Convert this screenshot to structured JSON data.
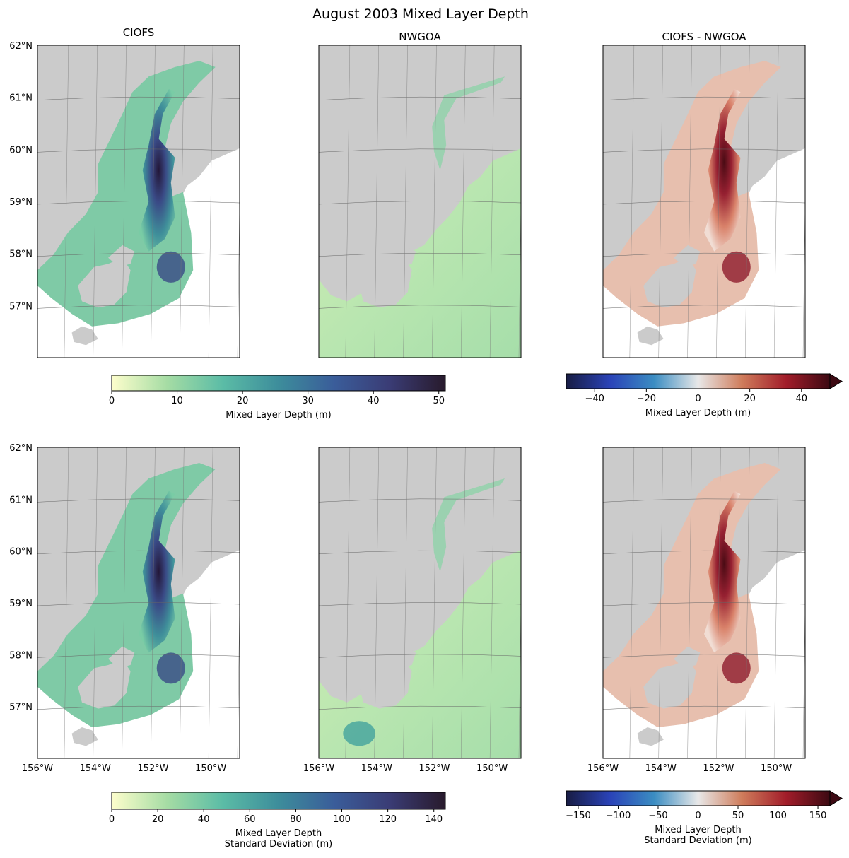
{
  "chart_data": {
    "type": "heatmap",
    "title": "August 2003 Mixed Layer Depth",
    "panels": [
      {
        "id": "p1",
        "row": 0,
        "col": 0,
        "title": "CIOFS",
        "colormap": "deep",
        "ylabels": [
          "62°N",
          "61°N",
          "60°N",
          "59°N",
          "58°N",
          "57°N"
        ],
        "xlabels": []
      },
      {
        "id": "p2",
        "row": 0,
        "col": 1,
        "title": "NWGOA",
        "colormap": "deep",
        "ylabels": [],
        "xlabels": []
      },
      {
        "id": "p3",
        "row": 0,
        "col": 2,
        "title": "CIOFS - NWGOA",
        "colormap": "balance",
        "ylabels": [],
        "xlabels": []
      },
      {
        "id": "p4",
        "row": 1,
        "col": 0,
        "title": "",
        "colormap": "deep",
        "ylabels": [
          "62°N",
          "61°N",
          "60°N",
          "59°N",
          "58°N",
          "57°N"
        ],
        "xlabels": [
          "156°W",
          "154°W",
          "152°W",
          "150°W"
        ]
      },
      {
        "id": "p5",
        "row": 1,
        "col": 1,
        "title": "",
        "colormap": "deep",
        "ylabels": [],
        "xlabels": [
          "156°W",
          "154°W",
          "152°W",
          "150°W"
        ]
      },
      {
        "id": "p6",
        "row": 1,
        "col": 2,
        "title": "",
        "colormap": "balance",
        "ylabels": [],
        "xlabels": [
          "156°W",
          "154°W",
          "152°W",
          "150°W"
        ]
      }
    ],
    "latitude_range": [
      56,
      62
    ],
    "longitude_range": [
      -156,
      -149
    ],
    "colorbars": [
      {
        "id": "cb1",
        "colormap": "deep",
        "range": [
          0,
          51
        ],
        "ticks": [
          0,
          10,
          20,
          30,
          40,
          50
        ],
        "tick_labels": [
          "0",
          "10",
          "20",
          "30",
          "40",
          "50"
        ],
        "label": [
          "Mixed Layer Depth (m)"
        ],
        "extend": "neither"
      },
      {
        "id": "cb2",
        "colormap": "balance",
        "range": [
          -51,
          51
        ],
        "ticks": [
          -40,
          -20,
          0,
          20,
          40
        ],
        "tick_labels": [
          "−40",
          "−20",
          "0",
          "20",
          "40"
        ],
        "label": [
          "Mixed Layer Depth (m)"
        ],
        "extend": "max"
      },
      {
        "id": "cb3",
        "colormap": "deep",
        "range": [
          0,
          145
        ],
        "ticks": [
          0,
          20,
          40,
          60,
          80,
          100,
          120,
          140
        ],
        "tick_labels": [
          "0",
          "20",
          "40",
          "60",
          "80",
          "100",
          "120",
          "140"
        ],
        "label": [
          "Mixed Layer Depth",
          "Standard Deviation (m)"
        ],
        "extend": "neither"
      },
      {
        "id": "cb4",
        "colormap": "balance",
        "range": [
          -165,
          165
        ],
        "ticks": [
          -150,
          -100,
          -50,
          0,
          50,
          100,
          150
        ],
        "tick_labels": [
          "−150",
          "−100",
          "−50",
          "0",
          "50",
          "100",
          "150"
        ],
        "label": [
          "Mixed Layer Depth",
          "Standard Deviation (m)"
        ],
        "extend": "max"
      }
    ]
  },
  "colors": {
    "land": "#cbcbcb",
    "ocean": "#ffffff",
    "deep_cmap": [
      "#fdfecc",
      "#a5dca4",
      "#5bbca6",
      "#3d8d9b",
      "#3a5d9a",
      "#3a3c75",
      "#281a2c"
    ],
    "balance_cmap": [
      "#181c43",
      "#2a43b8",
      "#3b8dc2",
      "#e8e8e8",
      "#cf7c5b",
      "#a21d2a",
      "#3c0912"
    ]
  }
}
